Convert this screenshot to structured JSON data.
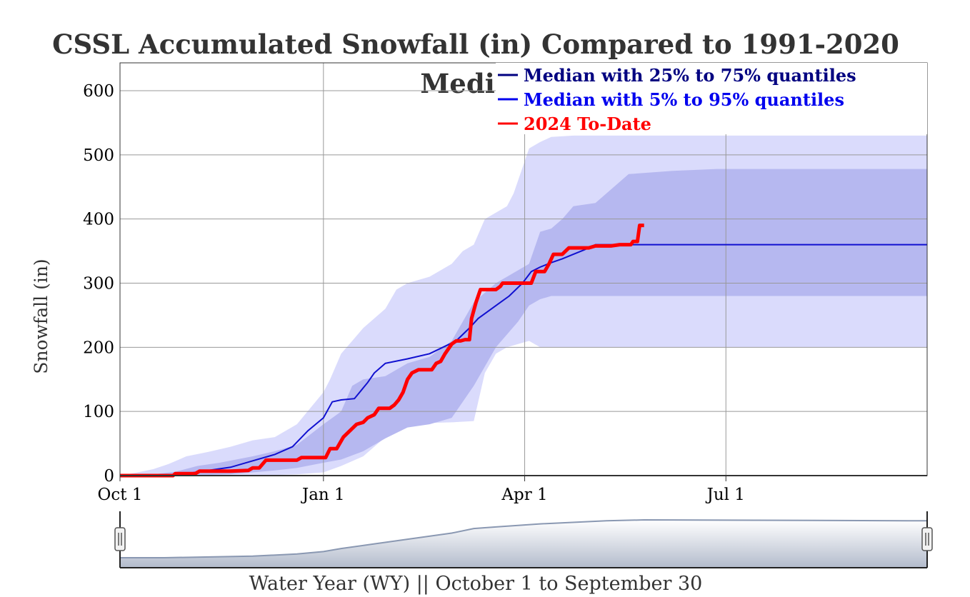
{
  "chart_data": {
    "type": "area",
    "title_line1": "CSSL Accumulated Snowfall (in) Compared to 1991-2020",
    "title_line2": "Median",
    "ylabel": "Snowfall (in)",
    "xlabel": "Water Year (WY) || October 1 to September 30",
    "ylim": [
      0,
      640
    ],
    "yticks": [
      0,
      100,
      200,
      300,
      400,
      500,
      600
    ],
    "xlim": [
      0,
      365
    ],
    "xticks": [
      {
        "day": 0,
        "label": "Oct 1"
      },
      {
        "day": 92,
        "label": "Jan 1"
      },
      {
        "day": 183,
        "label": "Apr 1"
      },
      {
        "day": 274,
        "label": "Jul 1"
      }
    ],
    "grid": true,
    "legend_position": "top-right",
    "colors": {
      "band_5_95": "#dadbfc",
      "band_25_75": "#b6b8f0",
      "median": "#1010d0",
      "median_legend_dark": "#000080",
      "current": "#ff0000",
      "navigator_fill": "#b3bccc",
      "navigator_line": "#8a98b2"
    },
    "series": [
      {
        "name": "Median with 25% to 75% quantiles",
        "color": "#000080",
        "band_low": [
          [
            0,
            0
          ],
          [
            30,
            0
          ],
          [
            50,
            2
          ],
          [
            60,
            5
          ],
          [
            70,
            8
          ],
          [
            80,
            12
          ],
          [
            92,
            20
          ],
          [
            100,
            25
          ],
          [
            110,
            38
          ],
          [
            120,
            58
          ],
          [
            130,
            75
          ],
          [
            140,
            80
          ],
          [
            150,
            90
          ],
          [
            160,
            140
          ],
          [
            170,
            200
          ],
          [
            180,
            240
          ],
          [
            185,
            265
          ],
          [
            190,
            275
          ],
          [
            195,
            280
          ],
          [
            200,
            280
          ],
          [
            210,
            280
          ],
          [
            365,
            280
          ]
        ],
        "band_high": [
          [
            0,
            0
          ],
          [
            15,
            2
          ],
          [
            25,
            6
          ],
          [
            35,
            15
          ],
          [
            45,
            20
          ],
          [
            60,
            30
          ],
          [
            70,
            38
          ],
          [
            80,
            48
          ],
          [
            92,
            80
          ],
          [
            100,
            100
          ],
          [
            105,
            140
          ],
          [
            110,
            150
          ],
          [
            120,
            155
          ],
          [
            130,
            175
          ],
          [
            140,
            185
          ],
          [
            150,
            210
          ],
          [
            160,
            270
          ],
          [
            170,
            300
          ],
          [
            180,
            320
          ],
          [
            185,
            330
          ],
          [
            190,
            380
          ],
          [
            195,
            385
          ],
          [
            200,
            400
          ],
          [
            205,
            420
          ],
          [
            215,
            425
          ],
          [
            230,
            470
          ],
          [
            250,
            475
          ],
          [
            270,
            478
          ],
          [
            365,
            478
          ]
        ]
      },
      {
        "name": "Median with 5% to 95% quantiles",
        "color": "#0000ee",
        "band_low": [
          [
            0,
            0
          ],
          [
            60,
            0
          ],
          [
            80,
            2
          ],
          [
            92,
            5
          ],
          [
            100,
            15
          ],
          [
            110,
            30
          ],
          [
            120,
            60
          ],
          [
            130,
            80
          ],
          [
            140,
            82
          ],
          [
            150,
            83
          ],
          [
            160,
            85
          ],
          [
            165,
            160
          ],
          [
            170,
            190
          ],
          [
            175,
            200
          ],
          [
            180,
            205
          ],
          [
            185,
            210
          ],
          [
            190,
            200
          ],
          [
            195,
            200
          ],
          [
            365,
            200
          ]
        ],
        "band_high": [
          [
            0,
            0
          ],
          [
            8,
            5
          ],
          [
            15,
            10
          ],
          [
            22,
            18
          ],
          [
            30,
            30
          ],
          [
            40,
            37
          ],
          [
            50,
            45
          ],
          [
            60,
            55
          ],
          [
            70,
            60
          ],
          [
            80,
            80
          ],
          [
            92,
            130
          ],
          [
            95,
            150
          ],
          [
            100,
            190
          ],
          [
            105,
            210
          ],
          [
            110,
            230
          ],
          [
            120,
            260
          ],
          [
            125,
            290
          ],
          [
            130,
            300
          ],
          [
            140,
            310
          ],
          [
            150,
            330
          ],
          [
            155,
            350
          ],
          [
            160,
            360
          ],
          [
            165,
            400
          ],
          [
            170,
            410
          ],
          [
            175,
            420
          ],
          [
            178,
            440
          ],
          [
            182,
            480
          ],
          [
            185,
            510
          ],
          [
            190,
            520
          ],
          [
            195,
            528
          ],
          [
            205,
            530
          ],
          [
            365,
            530
          ]
        ],
        "median": [
          [
            0,
            0
          ],
          [
            10,
            0
          ],
          [
            20,
            0
          ],
          [
            30,
            3
          ],
          [
            40,
            8
          ],
          [
            50,
            13
          ],
          [
            60,
            23
          ],
          [
            70,
            33
          ],
          [
            78,
            45
          ],
          [
            85,
            70
          ],
          [
            92,
            90
          ],
          [
            96,
            115
          ],
          [
            100,
            118
          ],
          [
            106,
            120
          ],
          [
            112,
            145
          ],
          [
            115,
            160
          ],
          [
            120,
            175
          ],
          [
            130,
            182
          ],
          [
            140,
            190
          ],
          [
            146,
            200
          ],
          [
            152,
            210
          ],
          [
            158,
            230
          ],
          [
            162,
            245
          ],
          [
            168,
            260
          ],
          [
            172,
            270
          ],
          [
            176,
            280
          ],
          [
            182,
            300
          ],
          [
            186,
            318
          ],
          [
            190,
            325
          ],
          [
            195,
            332
          ],
          [
            200,
            338
          ],
          [
            205,
            345
          ],
          [
            210,
            352
          ],
          [
            215,
            360
          ],
          [
            230,
            360
          ],
          [
            260,
            360
          ],
          [
            300,
            360
          ],
          [
            365,
            360
          ]
        ]
      },
      {
        "name": "2024 To-Date",
        "color": "#ff0000",
        "values": [
          [
            0,
            0
          ],
          [
            24,
            0
          ],
          [
            25,
            3
          ],
          [
            34,
            3
          ],
          [
            36,
            7
          ],
          [
            50,
            7
          ],
          [
            58,
            8
          ],
          [
            60,
            12
          ],
          [
            63,
            12
          ],
          [
            66,
            24
          ],
          [
            80,
            24
          ],
          [
            82,
            28
          ],
          [
            93,
            28
          ],
          [
            95,
            42
          ],
          [
            98,
            42
          ],
          [
            101,
            60
          ],
          [
            104,
            70
          ],
          [
            107,
            80
          ],
          [
            110,
            83
          ],
          [
            112,
            90
          ],
          [
            115,
            95
          ],
          [
            117,
            105
          ],
          [
            122,
            105
          ],
          [
            124,
            110
          ],
          [
            126,
            118
          ],
          [
            128,
            130
          ],
          [
            130,
            150
          ],
          [
            132,
            160
          ],
          [
            135,
            165
          ],
          [
            141,
            165
          ],
          [
            143,
            175
          ],
          [
            145,
            178
          ],
          [
            147,
            190
          ],
          [
            150,
            205
          ],
          [
            152,
            210
          ],
          [
            154,
            210
          ],
          [
            156,
            212
          ],
          [
            158,
            212
          ],
          [
            159,
            245
          ],
          [
            161,
            270
          ],
          [
            163,
            290
          ],
          [
            170,
            290
          ],
          [
            172,
            295
          ],
          [
            173,
            300
          ],
          [
            186,
            300
          ],
          [
            188,
            318
          ],
          [
            192,
            318
          ],
          [
            194,
            330
          ],
          [
            196,
            345
          ],
          [
            200,
            345
          ],
          [
            203,
            355
          ],
          [
            212,
            355
          ],
          [
            215,
            358
          ],
          [
            222,
            358
          ],
          [
            226,
            360
          ],
          [
            231,
            360
          ],
          [
            232,
            365
          ],
          [
            234,
            365
          ],
          [
            235,
            390
          ],
          [
            237,
            390
          ]
        ]
      }
    ],
    "legend": [
      {
        "label": "Median with 25% to 75% quantiles",
        "color": "#000080"
      },
      {
        "label": "Median with 5% to 95% quantiles",
        "color": "#0000ee"
      },
      {
        "label": "2024 To-Date",
        "color": "#ff0000"
      }
    ],
    "navigator": {
      "values": [
        [
          0,
          0
        ],
        [
          20,
          0
        ],
        [
          60,
          5
        ],
        [
          80,
          12
        ],
        [
          92,
          20
        ],
        [
          100,
          30
        ],
        [
          115,
          45
        ],
        [
          130,
          60
        ],
        [
          150,
          80
        ],
        [
          160,
          95
        ],
        [
          170,
          100
        ],
        [
          190,
          110
        ],
        [
          220,
          120
        ],
        [
          237,
          123
        ],
        [
          365,
          120
        ]
      ]
    }
  }
}
